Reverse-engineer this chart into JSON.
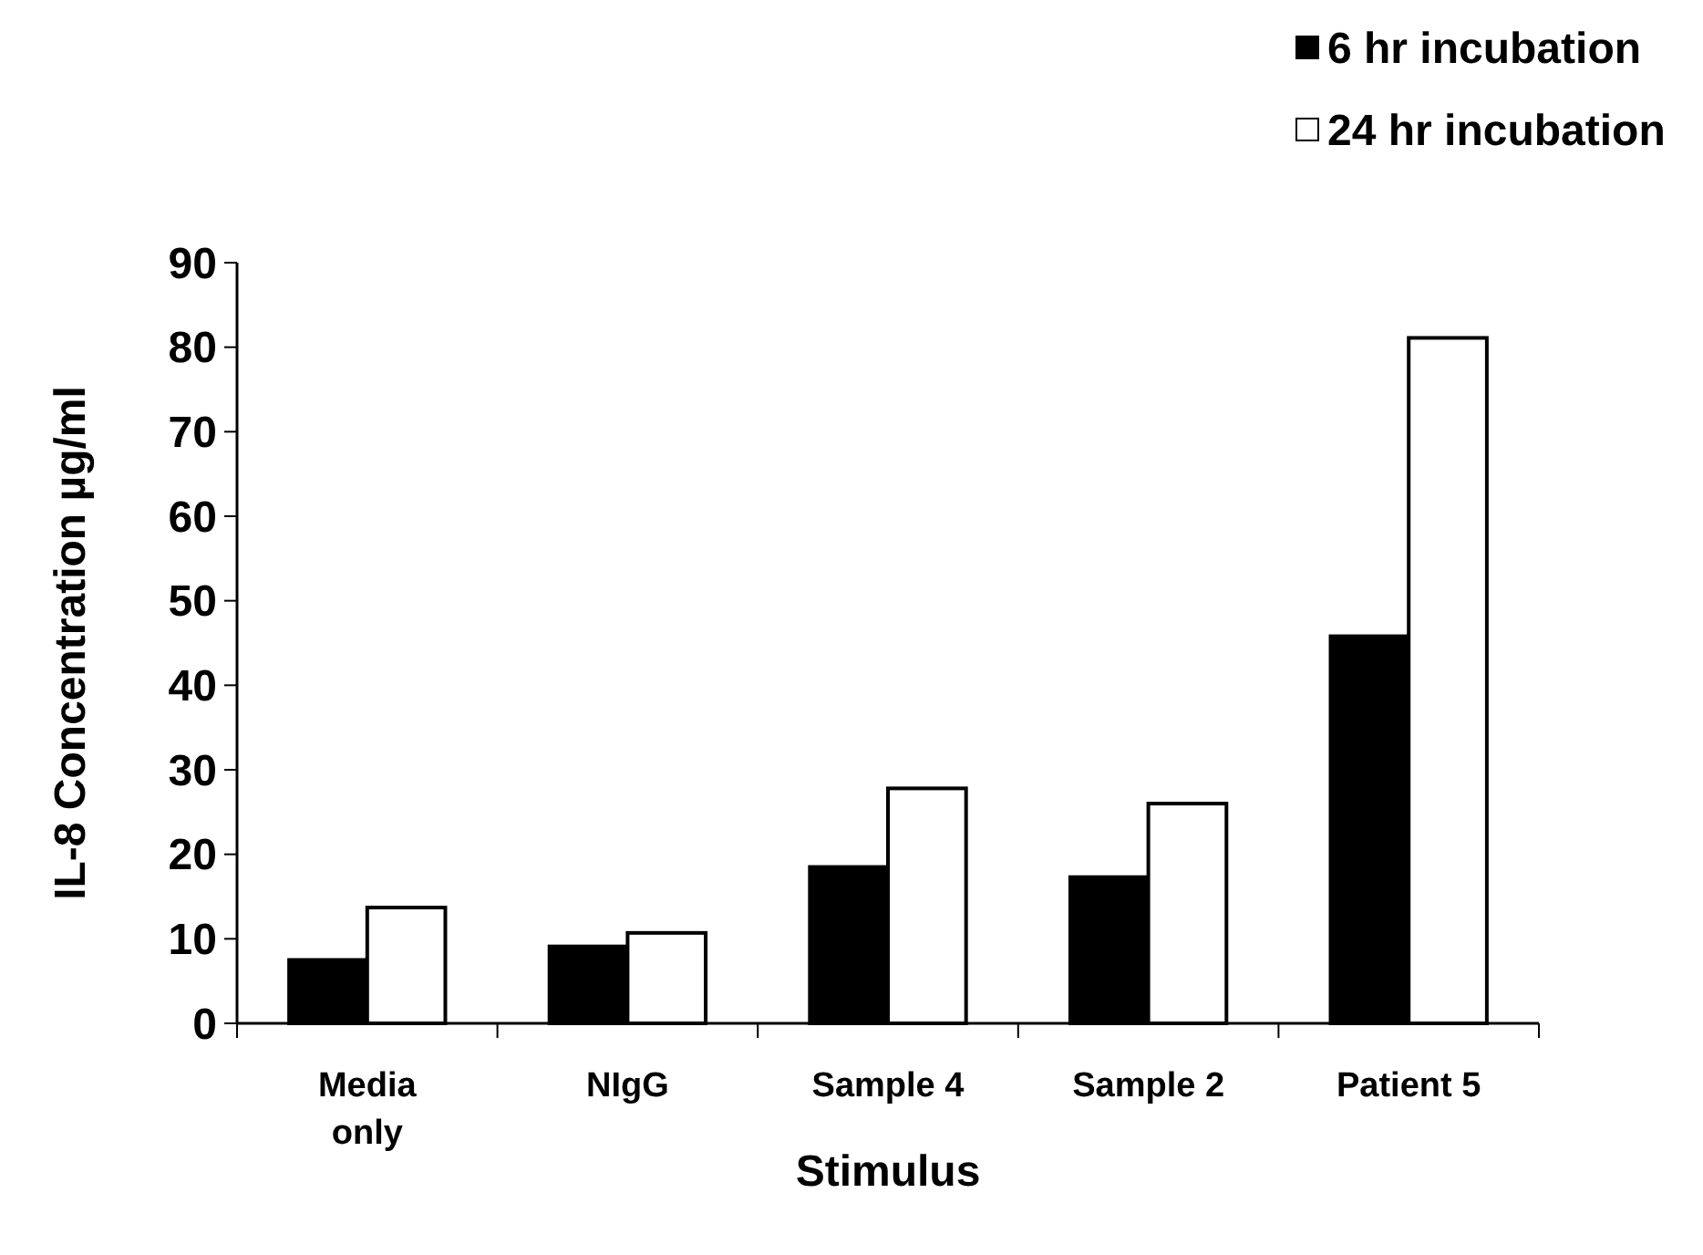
{
  "chart_data": {
    "type": "bar",
    "xlabel": "Stimulus",
    "ylabel": "IL-8 Concentration µg/ml",
    "categories": [
      "Media only",
      "NIgG",
      "Sample 4",
      "Sample 2",
      "Patient 5"
    ],
    "series": [
      {
        "name": "6 hr incubation",
        "color": "#000000",
        "values": [
          7.5,
          9.1,
          18.5,
          17.3,
          45.8
        ]
      },
      {
        "name": "24 hr incubation",
        "color": "#ffffff",
        "values": [
          13.7,
          10.7,
          27.8,
          26.0,
          81.1
        ]
      }
    ],
    "ylim": [
      0,
      90
    ],
    "yticks": [
      0,
      10,
      20,
      30,
      40,
      50,
      60,
      70,
      80,
      90
    ],
    "grid": false,
    "legend": "top right"
  }
}
